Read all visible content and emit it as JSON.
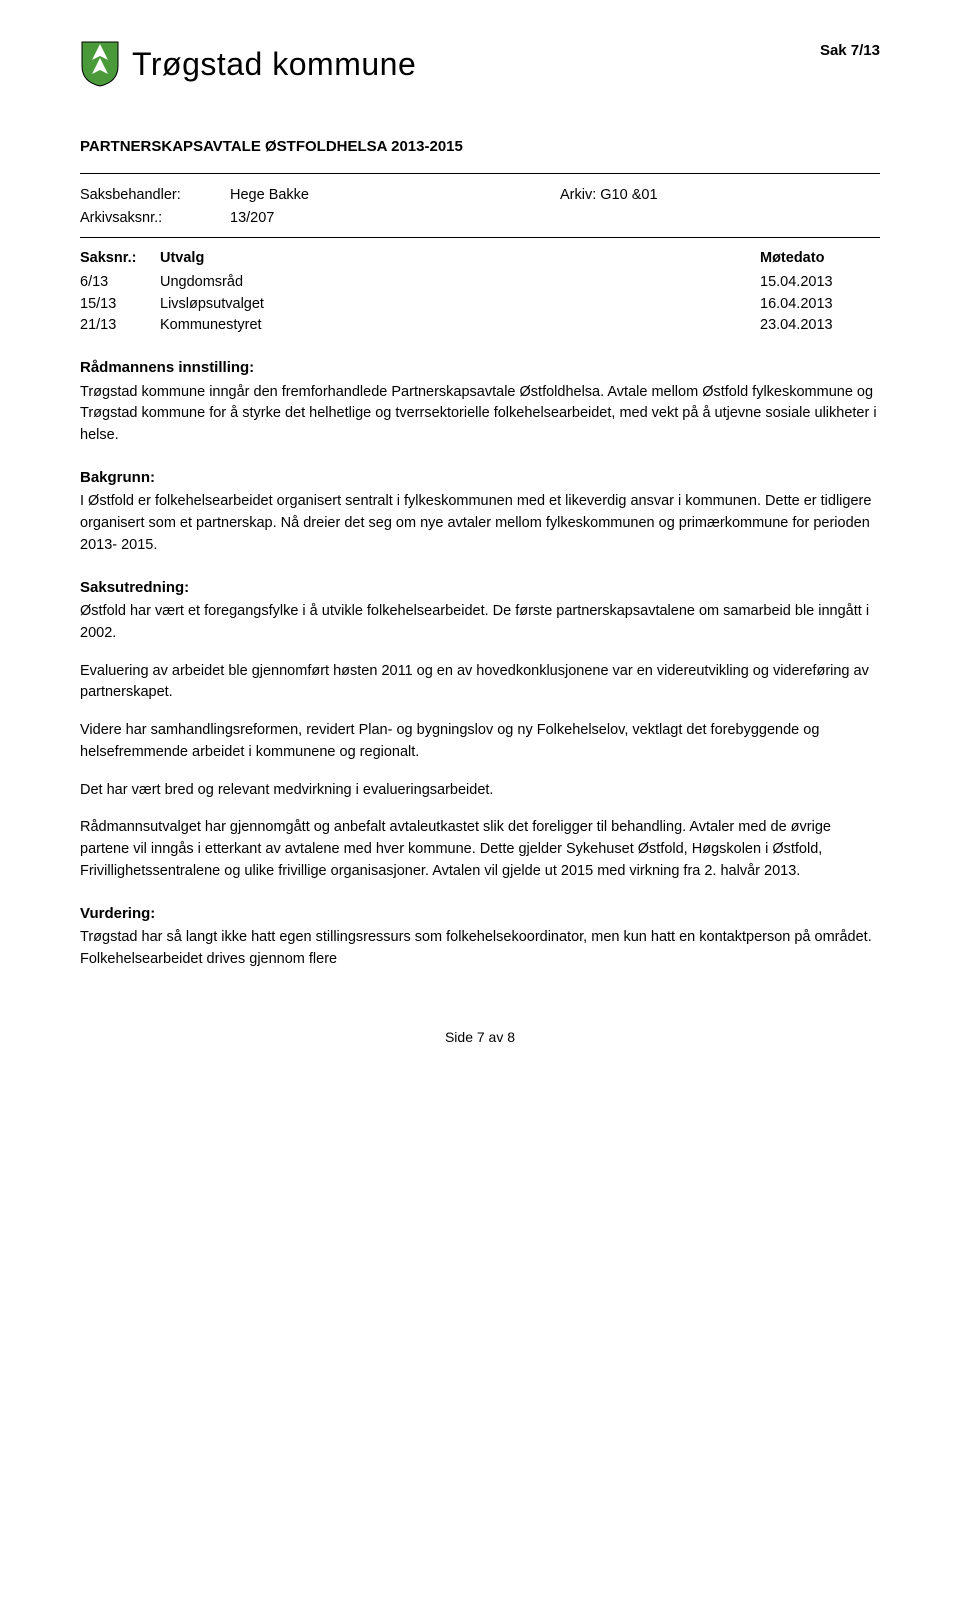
{
  "header": {
    "municipality": "Trøgstad kommune",
    "sak_label": "Sak  7/13"
  },
  "doc_title": "PARTNERSKAPSAVTALE ØSTFOLDHELSA 2013-2015",
  "meta": {
    "saksbehandler_label": "Saksbehandler:",
    "saksbehandler_value": "Hege Bakke",
    "arkiv_label": "Arkiv: G10 &01",
    "arkivsaksnr_label": "Arkivsaksnr.:",
    "arkivsaksnr_value": "13/207"
  },
  "utvalg_header": {
    "col1": "Saksnr.:",
    "col2": "Utvalg",
    "col3": "Møtedato"
  },
  "utvalg_rows": [
    {
      "col1": "6/13",
      "col2": "Ungdomsråd",
      "col3": "15.04.2013"
    },
    {
      "col1": "15/13",
      "col2": "Livsløpsutvalget",
      "col3": "16.04.2013"
    },
    {
      "col1": "21/13",
      "col2": "Kommunestyret",
      "col3": "23.04.2013"
    }
  ],
  "sections": {
    "innstilling": {
      "heading": "Rådmannens innstilling:",
      "paragraphs": [
        "Trøgstad kommune inngår den fremforhandlede Partnerskapsavtale Østfoldhelsa. Avtale mellom Østfold fylkeskommune og Trøgstad kommune for å styrke det helhetlige og tverrsektorielle folkehelsearbeidet, med vekt på å utjevne sosiale ulikheter i helse."
      ]
    },
    "bakgrunn": {
      "heading": "Bakgrunn:",
      "paragraphs": [
        "I Østfold er folkehelsearbeidet organisert sentralt i fylkeskommunen med et likeverdig ansvar i kommunen. Dette er tidligere organisert som et partnerskap. Nå dreier det seg om nye avtaler mellom fylkeskommunen og primærkommune for perioden 2013- 2015."
      ]
    },
    "saksutredning": {
      "heading": "Saksutredning:",
      "paragraphs": [
        "Østfold har vært et foregangsfylke i å utvikle folkehelsearbeidet. De første partnerskapsavtalene om samarbeid ble inngått i 2002.",
        "Evaluering av arbeidet ble gjennomført høsten 2011 og en av hovedkonklusjonene var en videreutvikling og videreføring av partnerskapet.",
        "Videre har samhandlingsreformen, revidert Plan- og bygningslov og ny Folkehelselov, vektlagt det forebyggende og helsefremmende arbeidet i kommunene og regionalt.",
        "Det har vært bred og relevant medvirkning i evalueringsarbeidet.",
        "Rådmannsutvalget har gjennomgått og anbefalt avtaleutkastet slik det foreligger til behandling. Avtaler med de øvrige partene vil inngås i etterkant av avtalene med hver kommune. Dette gjelder Sykehuset Østfold, Høgskolen i Østfold, Frivillighetssentralene og ulike frivillige organisasjoner. Avtalen vil gjelde ut 2015 med virkning fra 2. halvår 2013."
      ]
    },
    "vurdering": {
      "heading": "Vurdering:",
      "paragraphs": [
        "Trøgstad har så langt ikke hatt egen stillingsressurs som folkehelsekoordinator, men kun hatt en kontaktperson på området. Folkehelsearbeidet drives gjennom flere"
      ]
    }
  },
  "footer": {
    "page_label": "Side 7 av 8"
  },
  "colors": {
    "shield_green": "#4a9a3a",
    "shield_white": "#ffffff",
    "text": "#000000"
  }
}
